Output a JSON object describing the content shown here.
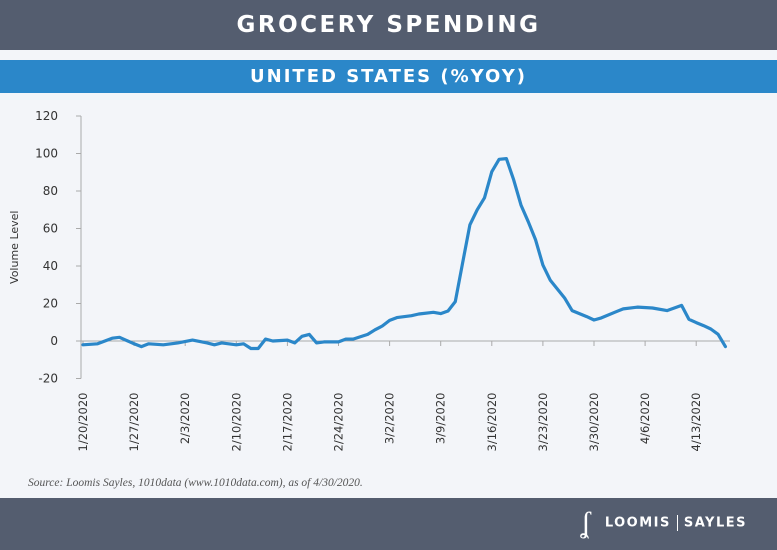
{
  "header": {
    "title": "GROCERY SPENDING",
    "subtitle": "UNITED STATES (%YOY)"
  },
  "source": "Source: Loomis Sayles, 1010data (www.1010data.com), as of 4/30/2020.",
  "logo": {
    "mark": "LS",
    "left": "LOOMIS",
    "right": "SAYLES"
  },
  "colors": {
    "header": "#545d6f",
    "band": "#2b87c9",
    "line": "#2b87c9",
    "background": "#f3f5f9"
  },
  "chart_data": {
    "type": "line",
    "title": "GROCERY SPENDING",
    "subtitle": "UNITED STATES (%YOY)",
    "xlabel": "",
    "ylabel": "Volume Level",
    "ylim": [
      -20,
      120
    ],
    "yticks": [
      -20,
      0,
      20,
      40,
      60,
      80,
      100,
      120
    ],
    "xticks": [
      "1/20/2020",
      "1/27/2020",
      "2/3/2020",
      "2/10/2020",
      "2/17/2020",
      "2/24/2020",
      "3/2/2020",
      "3/9/2020",
      "3/16/2020",
      "3/23/2020",
      "3/30/2020",
      "4/6/2020",
      "4/13/2020"
    ],
    "grid": false,
    "series": [
      {
        "x": [
          "1/20/2020",
          "1/22/2020",
          "1/24/2020",
          "1/25/2020",
          "1/27/2020",
          "1/28/2020",
          "1/29/2020",
          "1/31/2020",
          "2/2/2020",
          "2/4/2020",
          "2/6/2020",
          "2/7/2020",
          "2/8/2020",
          "2/10/2020",
          "2/11/2020",
          "2/12/2020",
          "2/13/2020",
          "2/14/2020",
          "2/15/2020",
          "2/17/2020",
          "2/18/2020",
          "2/19/2020",
          "2/20/2020",
          "2/21/2020",
          "2/22/2020",
          "2/24/2020",
          "2/25/2020",
          "2/26/2020",
          "2/28/2020",
          "2/29/2020",
          "3/1/2020",
          "3/2/2020",
          "3/3/2020",
          "3/5/2020",
          "3/6/2020",
          "3/8/2020",
          "3/9/2020",
          "3/10/2020",
          "3/11/2020",
          "3/12/2020",
          "3/13/2020",
          "3/14/2020",
          "3/15/2020",
          "3/16/2020",
          "3/17/2020",
          "3/18/2020",
          "3/19/2020",
          "3/20/2020",
          "3/21/2020",
          "3/22/2020",
          "3/23/2020",
          "3/24/2020",
          "3/26/2020",
          "3/27/2020",
          "3/29/2020",
          "3/30/2020",
          "3/31/2020",
          "4/2/2020",
          "4/3/2020",
          "4/5/2020",
          "4/7/2020",
          "4/9/2020",
          "4/11/2020",
          "4/12/2020",
          "4/13/2020",
          "4/14/2020",
          "4/15/2020",
          "4/16/2020",
          "4/17/2020"
        ],
        "values": [
          -2,
          -1.5,
          1.5,
          2,
          -1.5,
          -3,
          -1.5,
          -2,
          -1,
          0.5,
          -1,
          -2,
          -1,
          -2,
          -1.5,
          -4,
          -4,
          1,
          0,
          0.5,
          -1,
          2.5,
          3.5,
          -1,
          -0.5,
          -0.5,
          1,
          1,
          3.5,
          6,
          8,
          11,
          12.5,
          13.5,
          14.4,
          15.3,
          14.6,
          16,
          21,
          41.6,
          62,
          70,
          76.4,
          90.3,
          96.9,
          97.3,
          85.9,
          72.5,
          63.6,
          53.9,
          40.5,
          32.5,
          22.8,
          16.2,
          13,
          11.2,
          12.3,
          15.6,
          17.1,
          18.1,
          17.6,
          16.2,
          19,
          11.6,
          9.8,
          8.2,
          6.4,
          3.6,
          -3
        ]
      }
    ]
  }
}
